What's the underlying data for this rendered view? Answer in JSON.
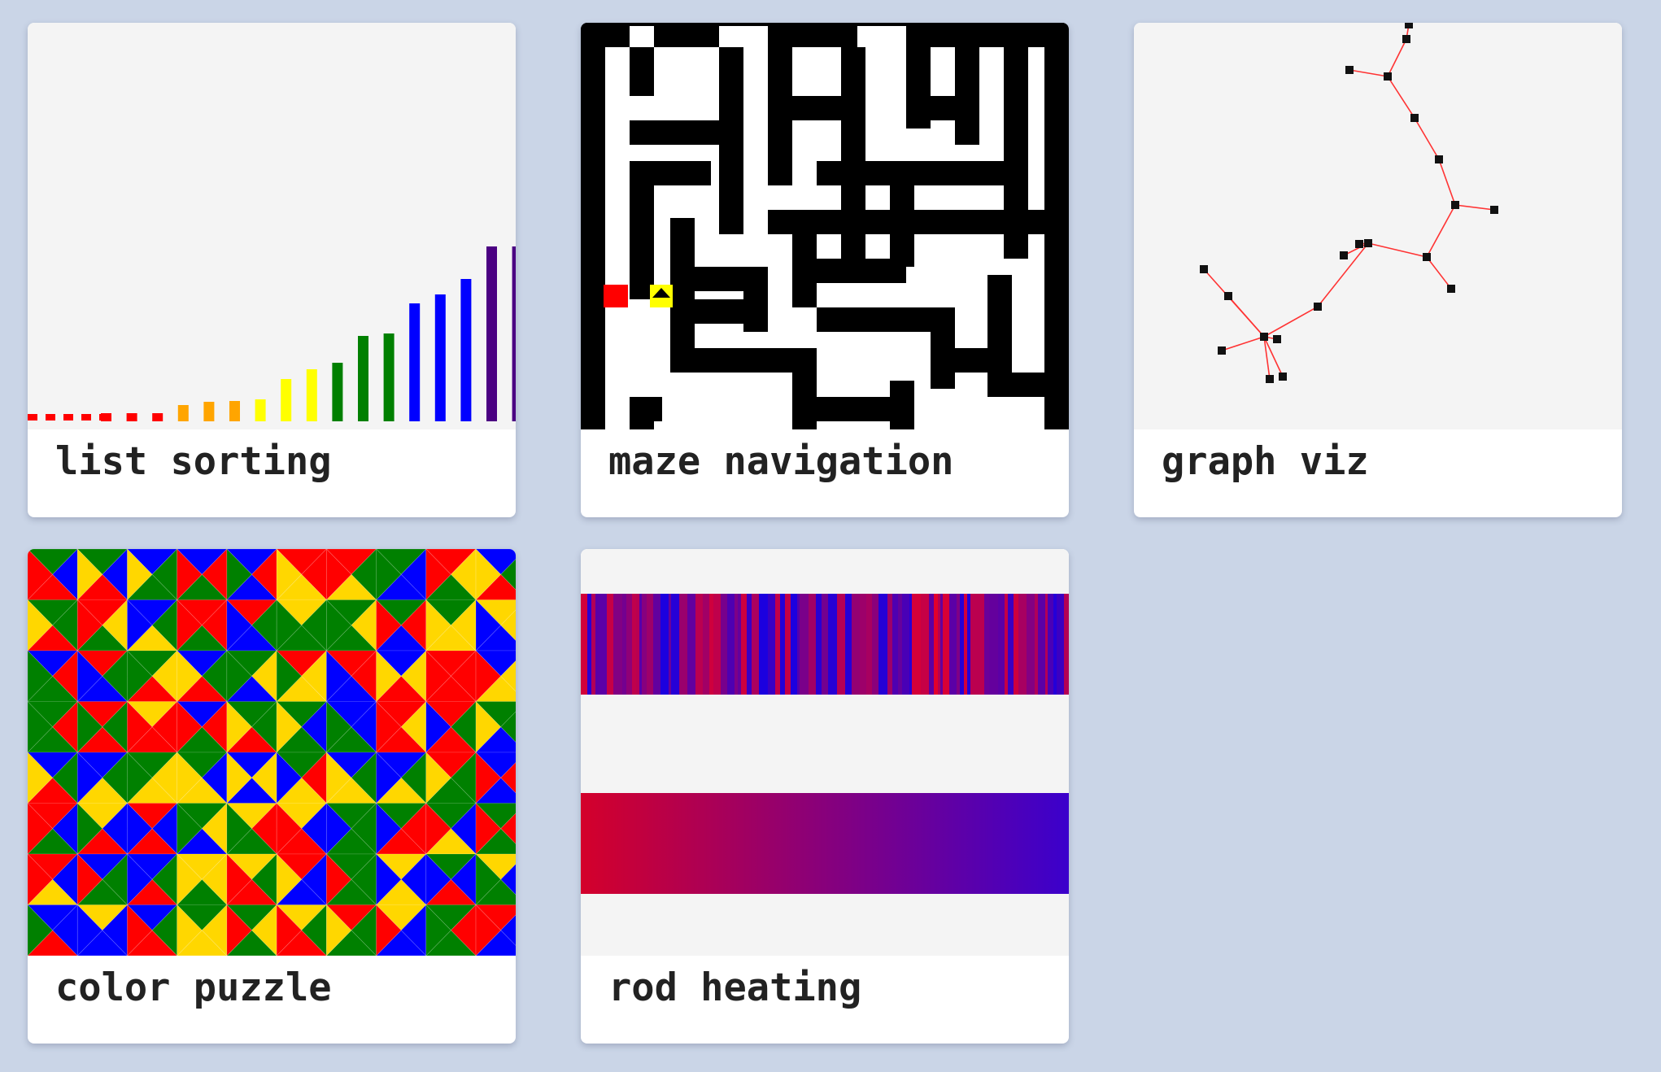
{
  "background_color": "#cad5e7",
  "cards": [
    {
      "label": "list sorting",
      "thumbnail_icon": "bar-chart-sorting-thumbnail"
    },
    {
      "label": "maze navigation",
      "thumbnail_icon": "maze-thumbnail"
    },
    {
      "label": "graph viz",
      "thumbnail_icon": "node-graph-thumbnail"
    },
    {
      "label": "color puzzle",
      "thumbnail_icon": "triangle-mosaic-thumbnail"
    },
    {
      "label": "rod heating",
      "thumbnail_icon": "heat-gradient-thumbnail"
    }
  ],
  "colors": {
    "rainbow": [
      "#ff0000",
      "#ffa500",
      "#ffff00",
      "#008000",
      "#0000ff",
      "#4b0082",
      "#ee82ee"
    ],
    "puzzle": [
      "#ff0000",
      "#008000",
      "#0000ff",
      "#ffd700"
    ],
    "graph_edge": "#ff3333",
    "graph_node": "#111111",
    "heat_hot": "#d4002b",
    "heat_cold": "#3b00cc",
    "maze_start": "#ff0000",
    "maze_agent": "#ffff00"
  }
}
